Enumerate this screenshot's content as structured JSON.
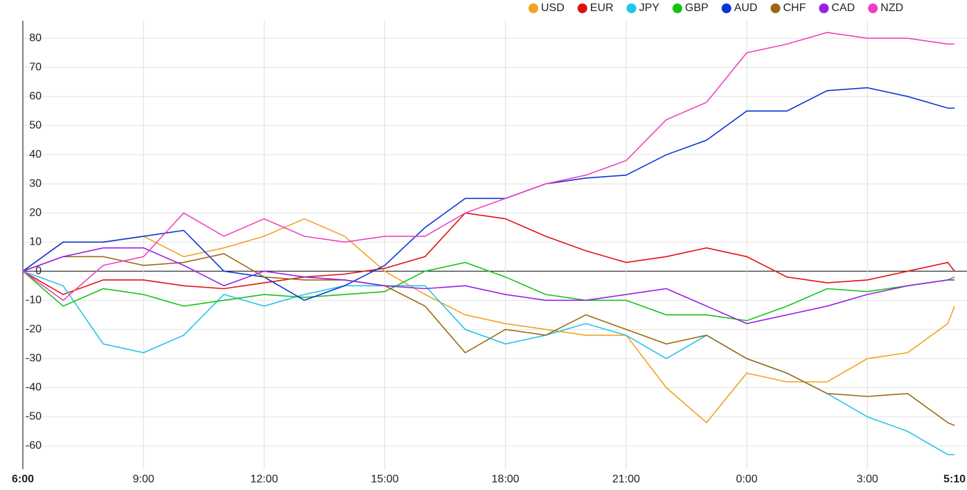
{
  "chart_data": {
    "type": "line",
    "x": [
      0,
      1,
      2,
      3,
      4,
      5,
      6,
      7,
      8,
      9,
      10,
      11,
      12,
      13,
      14,
      15,
      16,
      17,
      18,
      19,
      20,
      21,
      22,
      23,
      23.1667
    ],
    "xlim": [
      0,
      23.1667
    ],
    "xticks": [
      {
        "value": 0,
        "label": "6:00"
      },
      {
        "value": 3,
        "label": "9:00"
      },
      {
        "value": 6,
        "label": "12:00"
      },
      {
        "value": 9,
        "label": "15:00"
      },
      {
        "value": 12,
        "label": "18:00"
      },
      {
        "value": 15,
        "label": "21:00"
      },
      {
        "value": 18,
        "label": "0:00"
      },
      {
        "value": 21,
        "label": "3:00"
      },
      {
        "value": 23.1667,
        "label": "5:10"
      }
    ],
    "ylim": [
      -68,
      86
    ],
    "yticks": [
      -60,
      -50,
      -40,
      -30,
      -20,
      -10,
      0,
      10,
      20,
      30,
      40,
      50,
      60,
      70,
      80
    ],
    "grid": true,
    "legend": "top-right",
    "series": [
      {
        "name": "USD",
        "color": "#f4a020",
        "values": [
          0,
          10,
          10,
          12,
          5,
          8,
          12,
          18,
          12,
          0,
          -8,
          -15,
          -18,
          -20,
          -22,
          -22,
          -40,
          -52,
          -35,
          -38,
          -38,
          -30,
          -28,
          -18,
          -12
        ]
      },
      {
        "name": "EUR",
        "color": "#e01010",
        "values": [
          0,
          -8,
          -3,
          -3,
          -5,
          -6,
          -4,
          -2,
          -1,
          1,
          5,
          20,
          18,
          12,
          7,
          3,
          5,
          8,
          5,
          -2,
          -4,
          -3,
          0,
          3,
          0
        ]
      },
      {
        "name": "JPY",
        "color": "#22c4e8",
        "values": [
          0,
          -5,
          -25,
          -28,
          -22,
          -8,
          -12,
          -8,
          -5,
          -5,
          -5,
          -20,
          -25,
          -22,
          -18,
          -22,
          -30,
          -22,
          -30,
          -35,
          -42,
          -50,
          -55,
          -63,
          -63
        ]
      },
      {
        "name": "GBP",
        "color": "#16c216",
        "values": [
          0,
          -12,
          -6,
          -8,
          -12,
          -10,
          -8,
          -9,
          -8,
          -7,
          0,
          3,
          -2,
          -8,
          -10,
          -10,
          -15,
          -15,
          -17,
          -12,
          -6,
          -7,
          -5,
          -3,
          -2
        ]
      },
      {
        "name": "AUD",
        "color": "#0a35d6",
        "values": [
          0,
          10,
          10,
          12,
          14,
          0,
          -2,
          -10,
          -5,
          2,
          15,
          25,
          25,
          30,
          32,
          33,
          40,
          45,
          55,
          55,
          62,
          63,
          60,
          56,
          56
        ]
      },
      {
        "name": "CHF",
        "color": "#9b6a10",
        "values": [
          0,
          5,
          5,
          2,
          3,
          6,
          -2,
          -3,
          -3,
          -5,
          -12,
          -28,
          -20,
          -22,
          -15,
          -20,
          -25,
          -22,
          -30,
          -35,
          -42,
          -43,
          -42,
          -52,
          -53
        ]
      },
      {
        "name": "CAD",
        "color": "#9b1ee6",
        "values": [
          0,
          5,
          8,
          8,
          2,
          -5,
          0,
          -2,
          -3,
          -5,
          -6,
          -5,
          -8,
          -10,
          -10,
          -8,
          -6,
          -12,
          -18,
          -15,
          -12,
          -8,
          -5,
          -3,
          -3
        ]
      },
      {
        "name": "NZD",
        "color": "#f040c0",
        "values": [
          0,
          -10,
          2,
          5,
          20,
          12,
          18,
          12,
          10,
          12,
          12,
          20,
          25,
          30,
          33,
          38,
          52,
          58,
          75,
          78,
          82,
          80,
          80,
          78,
          78
        ]
      }
    ]
  }
}
